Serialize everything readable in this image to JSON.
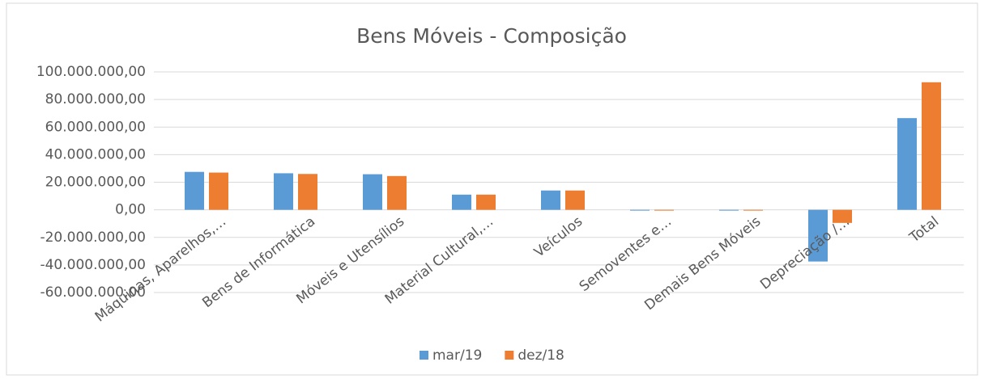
{
  "chart_data": {
    "type": "bar",
    "title": "Bens Móveis - Composição",
    "categories": [
      "Máquinas, Aparelhos,…",
      "Bens de Informática",
      "Móveis e Utensílios",
      "Material Cultural,…",
      "Veículos",
      "Semoventes e…",
      "Demais Bens Móveis",
      "Depreciação /…",
      "Total"
    ],
    "series": [
      {
        "name": "mar/19",
        "color": "#5b9bd5",
        "values": [
          27500000,
          26500000,
          25800000,
          11000000,
          14000000,
          0,
          0,
          -37500000,
          66500000
        ]
      },
      {
        "name": "dez/18",
        "color": "#ed7d31",
        "values": [
          27000000,
          26000000,
          24500000,
          11000000,
          14000000,
          0,
          0,
          -9500000,
          92500000
        ]
      }
    ],
    "ylim": [
      -60000000,
      100000000
    ],
    "yticks": [
      {
        "value": -60000000,
        "label": "-60.000.000,00"
      },
      {
        "value": -40000000,
        "label": "-40.000.000,00"
      },
      {
        "value": -20000000,
        "label": "-20.000.000,00"
      },
      {
        "value": 0,
        "label": "0,00"
      },
      {
        "value": 20000000,
        "label": "20.000.000,00"
      },
      {
        "value": 40000000,
        "label": "40.000.000,00"
      },
      {
        "value": 60000000,
        "label": "60.000.000,00"
      },
      {
        "value": 80000000,
        "label": "80.000.000,00"
      },
      {
        "value": 100000000,
        "label": "100.000.000,00"
      }
    ],
    "grid": true,
    "legend": "bottom"
  }
}
